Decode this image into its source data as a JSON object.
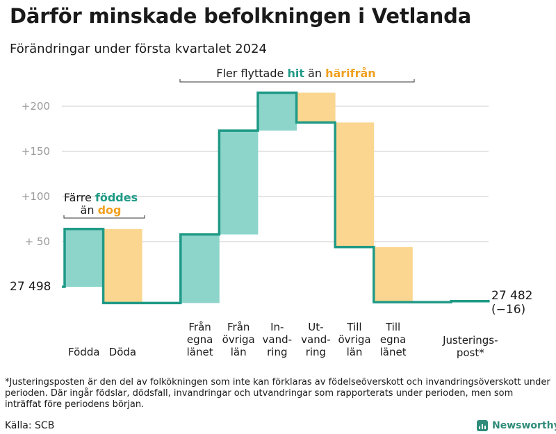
{
  "header": {
    "title": "Därför minskade befolkningen i Vetlanda",
    "subtitle": "Förändringar under första kvartalet 2024"
  },
  "chart_data": {
    "type": "waterfall",
    "start_value": 27498,
    "start_label": "27  498",
    "end_value": 27482,
    "end_label": "27 482",
    "end_change_label": "(−16)",
    "y_axis": {
      "min": 0,
      "max": 220,
      "ticks": [
        {
          "value": 50,
          "label": "+  50"
        },
        {
          "value": 100,
          "label": "+100"
        },
        {
          "value": 150,
          "label": "+150"
        },
        {
          "value": 200,
          "label": "+200"
        }
      ]
    },
    "categories": [
      {
        "label": [
          "Födda"
        ],
        "cumulative": 64,
        "type": "increase"
      },
      {
        "label": [
          "Döda"
        ],
        "cumulative": -18,
        "type": "decrease"
      },
      {
        "label": [],
        "cumulative": -18,
        "type": "flat"
      },
      {
        "label": [
          "Från",
          "egna",
          "länet"
        ],
        "cumulative": 58,
        "type": "increase"
      },
      {
        "label": [
          "Från",
          "övriga",
          "län"
        ],
        "cumulative": 173,
        "type": "increase"
      },
      {
        "label": [
          "In-",
          "vand-",
          "ring"
        ],
        "cumulative": 215,
        "type": "increase"
      },
      {
        "label": [
          "Ut-",
          "vand-",
          "ring"
        ],
        "cumulative": 182,
        "type": "decrease"
      },
      {
        "label": [
          "Till",
          "övriga",
          "län"
        ],
        "cumulative": 44,
        "type": "decrease"
      },
      {
        "label": [
          "Till",
          "egna",
          "länet"
        ],
        "cumulative": -17,
        "type": "decrease"
      },
      {
        "label": [],
        "cumulative": -17,
        "type": "flat"
      },
      {
        "label": [
          "Justerings-",
          "post*"
        ],
        "cumulative": -16,
        "type": "adjustment"
      }
    ],
    "annotations": [
      {
        "lines": [
          [
            {
              "text": "Färre ",
              "style": "plain"
            },
            {
              "text": "föddes",
              "style": "green"
            }
          ],
          [
            {
              "text": "än ",
              "style": "plain"
            },
            {
              "text": "dog",
              "style": "orange"
            }
          ]
        ]
      },
      {
        "lines": [
          [
            {
              "text": "Fler flyttade ",
              "style": "plain"
            },
            {
              "text": "hit",
              "style": "green"
            },
            {
              "text": "  än ",
              "style": "plain"
            },
            {
              "text": "härifrån",
              "style": "orange"
            }
          ]
        ]
      }
    ],
    "colors": {
      "increase": "#8dd5cb",
      "decrease": "#fad690",
      "line": "#1f9a86",
      "grid": "#dddddd",
      "tick_text": "#9a9a9a"
    }
  },
  "footnote": "*Justeringsposten är den del av folkökningen som inte kan förklaras av födelseöverskott och invandringsöverskott under perioden. Där ingår födslar, dödsfall, invandringar och utvandringar som rapporterats under perioden, men som inträffat före periodens början.",
  "source": "Källa: SCB",
  "brand": {
    "name": "Newsworthy",
    "icon": "bar-chart-logo-icon"
  }
}
